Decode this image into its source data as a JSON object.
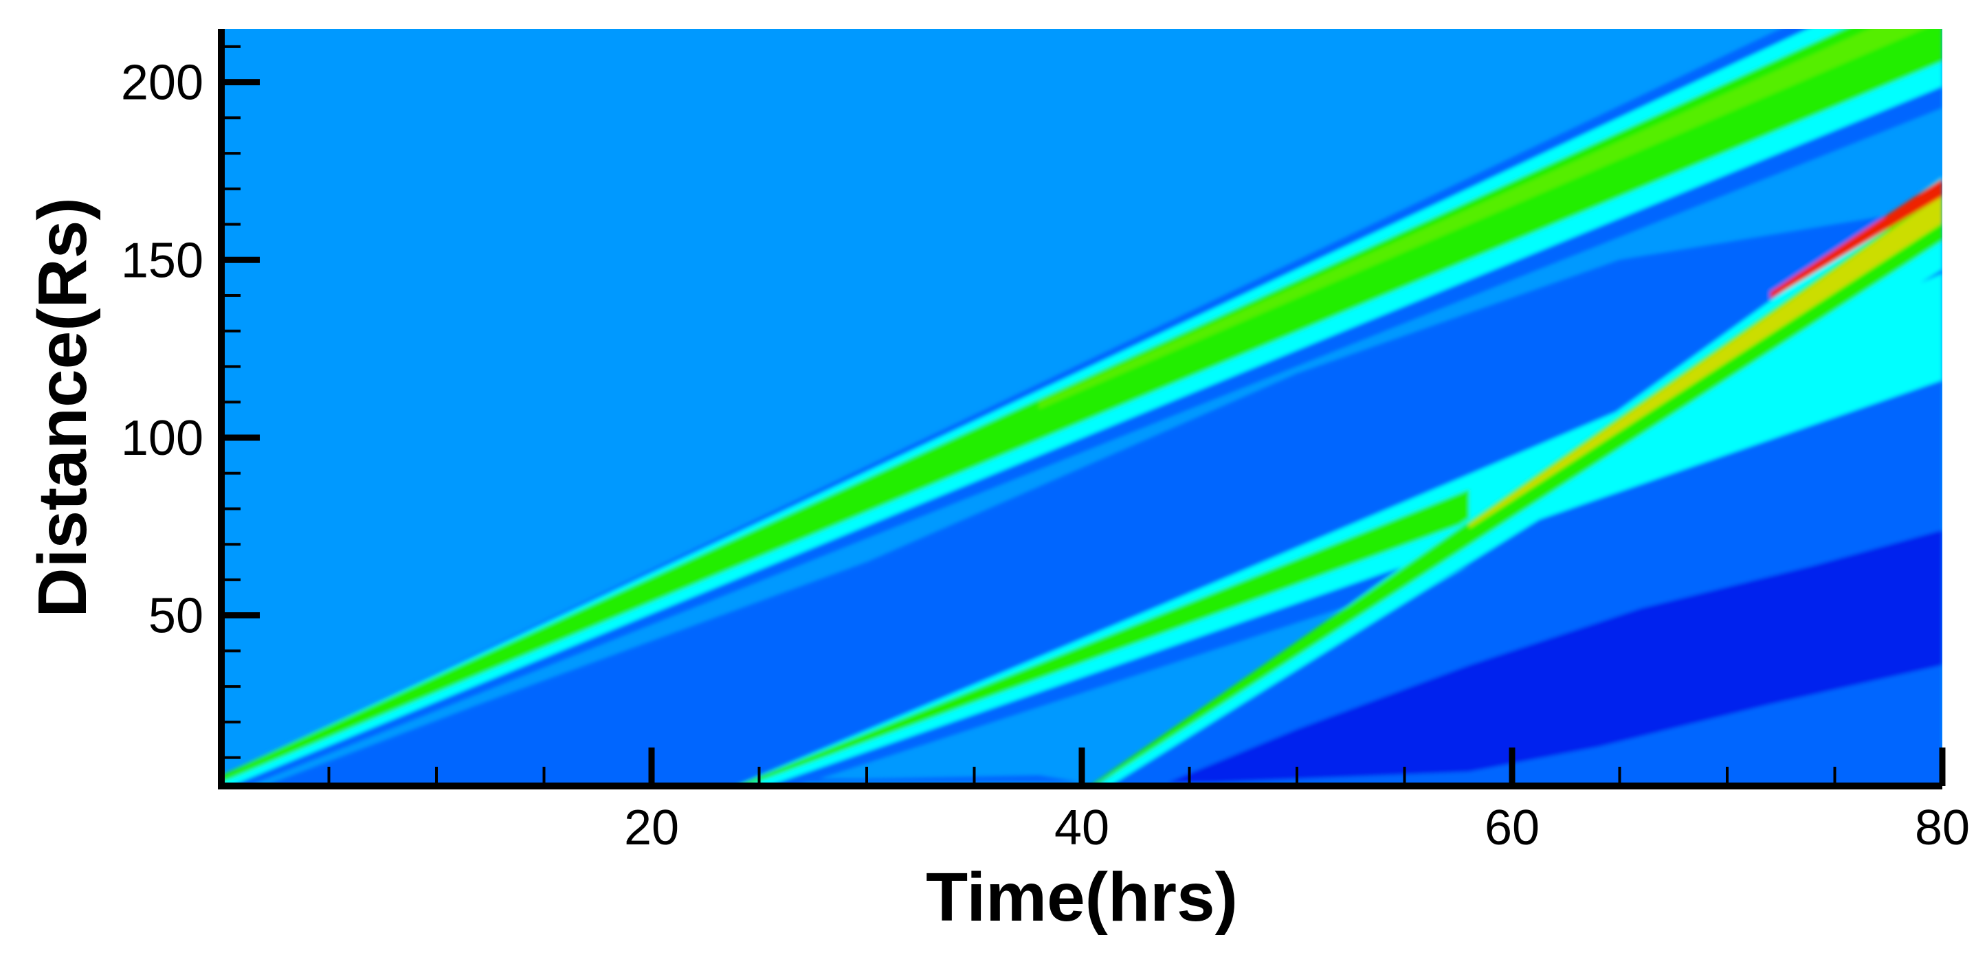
{
  "chart_data": {
    "type": "heatmap",
    "title": "",
    "xlabel": "Time(hrs)",
    "ylabel": "Distance(Rs)",
    "xlim": [
      0,
      80
    ],
    "ylim": [
      2,
      215
    ],
    "x_major_ticks": [
      20,
      40,
      60,
      80
    ],
    "x_minor_step": 5,
    "y_major_ticks": [
      50,
      100,
      150,
      200
    ],
    "y_minor_step": 10,
    "grid": false,
    "legend": "none",
    "colors": {
      "background": "#0099ff",
      "low": "#0066ff",
      "lowest": "#0022ee",
      "mid": "#00ffff",
      "high": "#22ee00",
      "higher": "#ccdd00",
      "peak": "#ee2200"
    },
    "features": [
      {
        "name": "disturbance-1",
        "start": [
          0,
          2
        ],
        "end": [
          80,
          215
        ],
        "peak_level": "green"
      },
      {
        "name": "disturbance-2",
        "start": [
          23.7,
          2
        ],
        "end": [
          70,
          135
        ],
        "peak_level": "green"
      },
      {
        "name": "disturbance-3",
        "start": [
          40.5,
          2
        ],
        "end": [
          80,
          162
        ],
        "peak_level": "red"
      }
    ]
  }
}
